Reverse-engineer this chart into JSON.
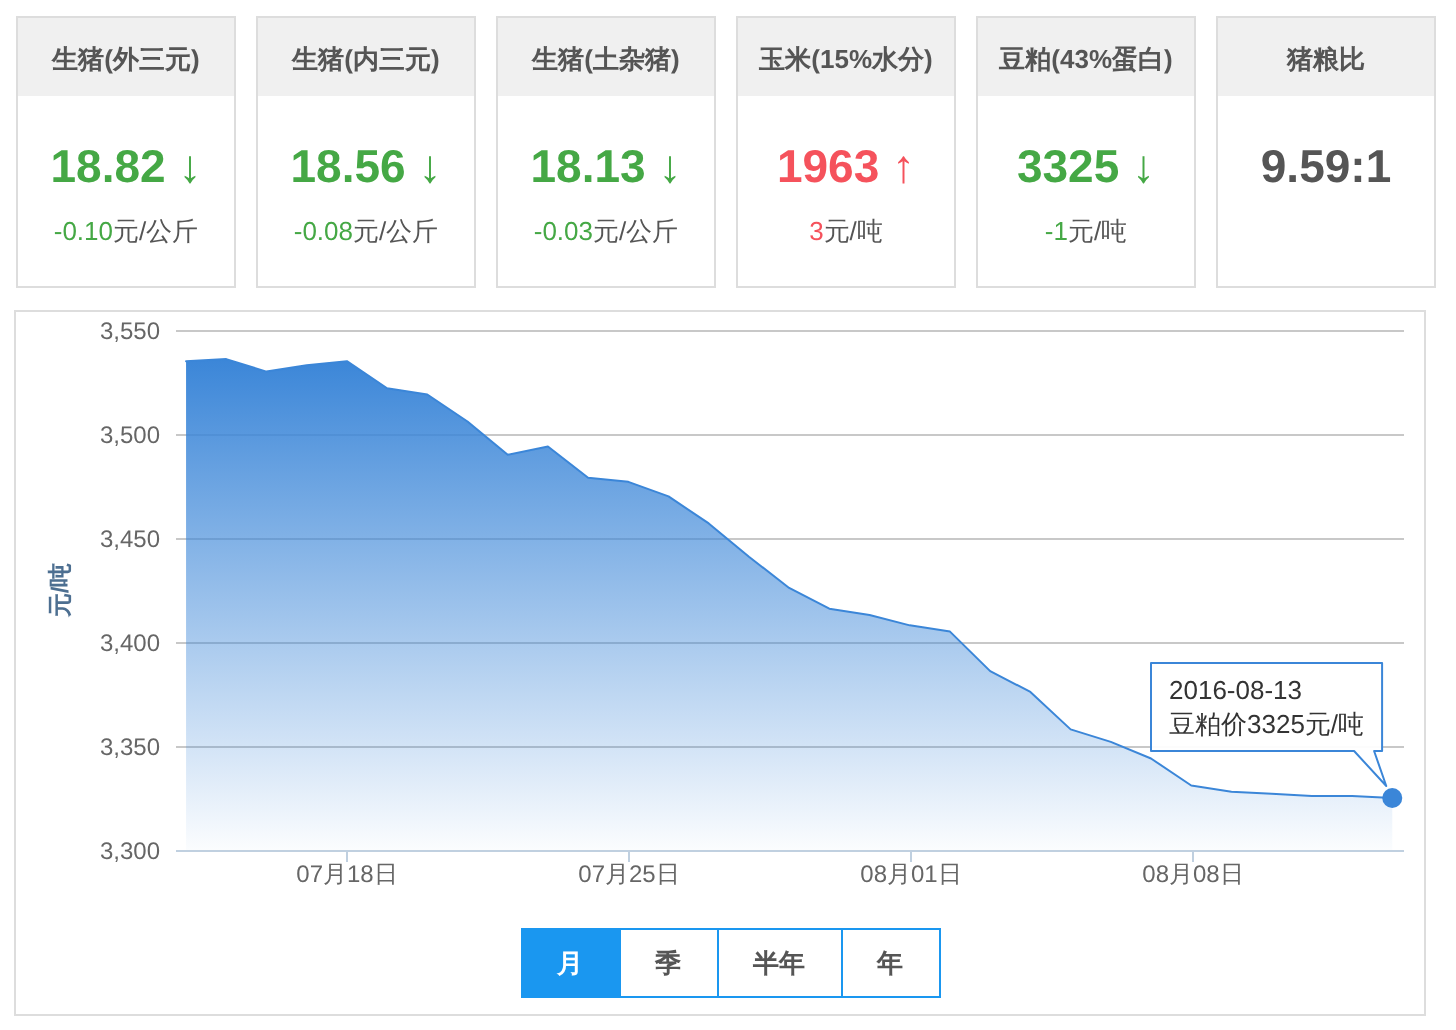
{
  "chart_data": [
    {
      "type": "other",
      "title": "生猪(外三元)",
      "annotations": [
        "18.82 ↓",
        "-0.10元/公斤"
      ],
      "color": "#45a845"
    },
    {
      "type": "other",
      "title": "生猪(内三元)",
      "annotations": [
        "18.56 ↓",
        "-0.08元/公斤"
      ],
      "color": "#45a845"
    },
    {
      "type": "other",
      "title": "生猪(土杂猪)",
      "annotations": [
        "18.13 ↓",
        "-0.03元/公斤"
      ],
      "color": "#45a845"
    },
    {
      "type": "other",
      "title": "玉米(15%水分)",
      "annotations": [
        "1963 ↑",
        "3元/吨"
      ],
      "color": "#f5525c"
    },
    {
      "type": "other",
      "title": "豆粕(43%蛋白)",
      "annotations": [
        "3325 ↓",
        "-1元/吨"
      ],
      "color": "#45a845"
    },
    {
      "type": "other",
      "title": "猪粮比",
      "annotations": [
        "9.59:1"
      ],
      "color": "#555555"
    },
    {
      "type": "area",
      "ylabel": "元/吨",
      "x": [
        "2016-07-14",
        "2016-07-15",
        "2016-07-16",
        "2016-07-17",
        "2016-07-18",
        "2016-07-19",
        "2016-07-20",
        "2016-07-21",
        "2016-07-22",
        "2016-07-23",
        "2016-07-24",
        "2016-07-25",
        "2016-07-26",
        "2016-07-27",
        "2016-07-28",
        "2016-07-29",
        "2016-07-30",
        "2016-07-31",
        "2016-08-01",
        "2016-08-02",
        "2016-08-03",
        "2016-08-04",
        "2016-08-05",
        "2016-08-06",
        "2016-08-07",
        "2016-08-08",
        "2016-08-09",
        "2016-08-10",
        "2016-08-11",
        "2016-08-12",
        "2016-08-13"
      ],
      "values": [
        3535,
        3536,
        3530,
        3533,
        3535,
        3522,
        3519,
        3506,
        3490,
        3494,
        3479,
        3477,
        3470,
        3457,
        3441,
        3426,
        3416,
        3413,
        3408,
        3405,
        3386,
        3376,
        3358,
        3352,
        3344,
        3331,
        3328,
        3327,
        3326,
        3326,
        3325
      ],
      "color": "#3b86d8",
      "xlim": [
        "2016-07-13T18:00",
        "2016-08-13T07:00"
      ],
      "xticks": [
        {
          "value": "2016-07-18",
          "label": "07月18日"
        },
        {
          "value": "2016-07-25",
          "label": "07月25日"
        },
        {
          "value": "2016-08-01",
          "label": "08月01日"
        },
        {
          "value": "2016-08-08",
          "label": "08月08日"
        }
      ],
      "ylim": [
        3300,
        3550
      ],
      "yticks": [
        {
          "value": 3300,
          "label": "3,300"
        },
        {
          "value": 3350,
          "label": "3,350"
        },
        {
          "value": 3400,
          "label": "3,400"
        },
        {
          "value": 3450,
          "label": "3,450"
        },
        {
          "value": 3500,
          "label": "3,500"
        },
        {
          "value": 3550,
          "label": "3,550"
        }
      ],
      "grid": "y",
      "annotations": [
        {
          "text": "2016-08-13\n豆粕价3325元/吨",
          "x": "2016-08-13",
          "y": 3325
        }
      ]
    },
    {
      "type": "other",
      "annotations": [
        "月",
        "季",
        "半年",
        "年"
      ]
    }
  ]
}
